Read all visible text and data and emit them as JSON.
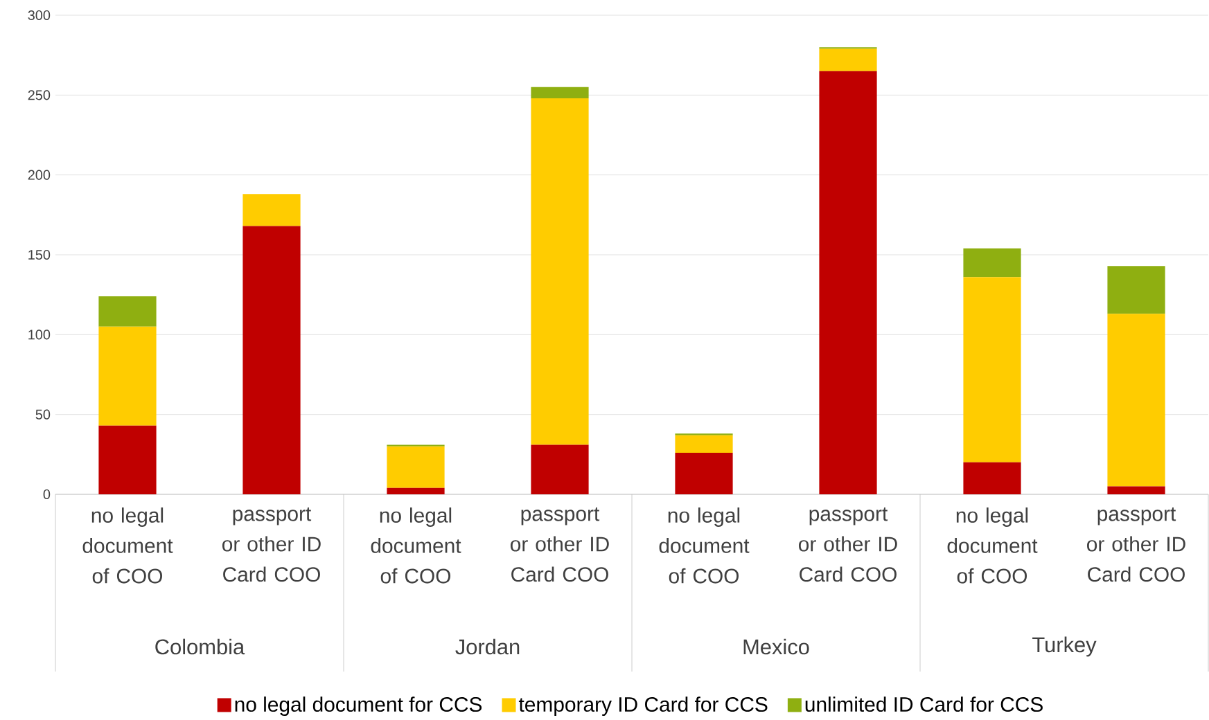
{
  "chart_data": {
    "type": "bar",
    "stacked": true,
    "categories": [
      "no legal document of COO",
      "passport or other ID Card COO",
      "no legal document of COO",
      "passport or other ID Card COO",
      "no legal document of COO",
      "passport or other ID Card COO",
      "no legal document of COO",
      "passport or other ID Card COO"
    ],
    "series": [
      {
        "name": "no legal document for CCS",
        "color": "#c00000",
        "values": [
          43,
          168,
          4,
          31,
          26,
          265,
          20,
          5
        ]
      },
      {
        "name": "temporary ID Card for CCS",
        "color": "#ffcc00",
        "values": [
          62,
          20,
          26,
          217,
          11,
          14,
          116,
          108
        ]
      },
      {
        "name": "unlimited ID Card for CCS",
        "color": "#8faf11",
        "values": [
          19,
          0,
          1,
          7,
          1,
          1,
          18,
          30
        ]
      }
    ],
    "ylim": [
      0,
      300
    ],
    "yticks": [
      0,
      50,
      100,
      150,
      200,
      250,
      300
    ],
    "grid": "y",
    "legend": "bottom",
    "annotations": [
      "Colombia",
      "Jordan",
      "Mexico",
      "Turkey"
    ]
  }
}
